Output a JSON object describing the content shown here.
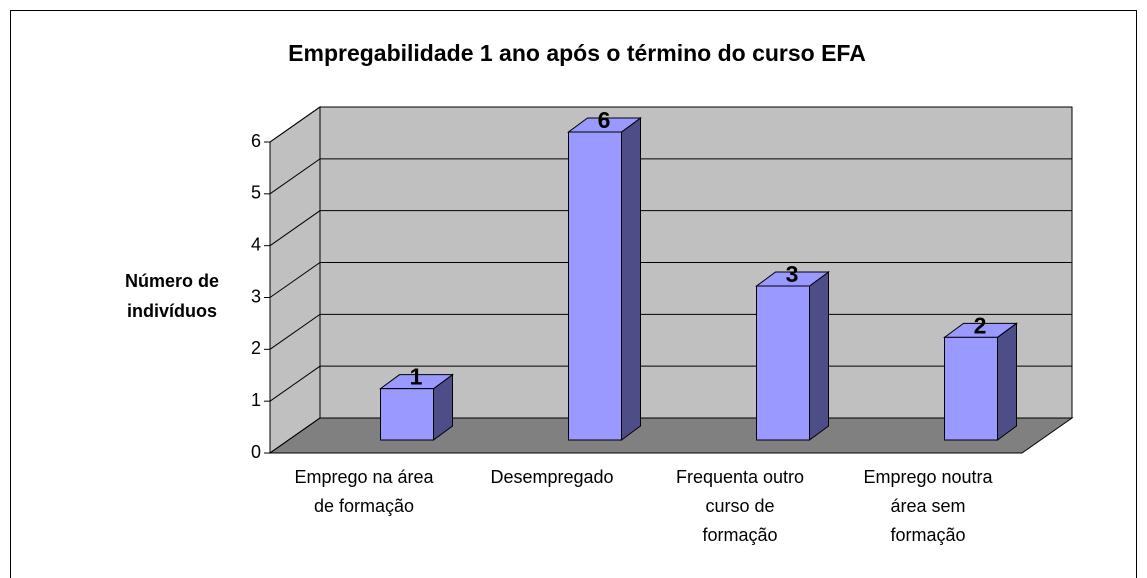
{
  "chart_data": {
    "type": "bar3d",
    "title": "Empregabilidade 1 ano após o término do curso EFA",
    "ylabel": "Número de\nindivíduos",
    "categories": [
      "Emprego na área\nde formação",
      "Desempregado",
      "Frequenta outro\ncurso de\nformação",
      "Emprego noutra\nárea sem\nformação"
    ],
    "values": [
      1,
      6,
      3,
      2
    ],
    "color": "#9999ff",
    "ylim": [
      0,
      6
    ],
    "yticks": [
      0,
      1,
      2,
      3,
      4,
      5,
      6
    ],
    "grid": true
  }
}
